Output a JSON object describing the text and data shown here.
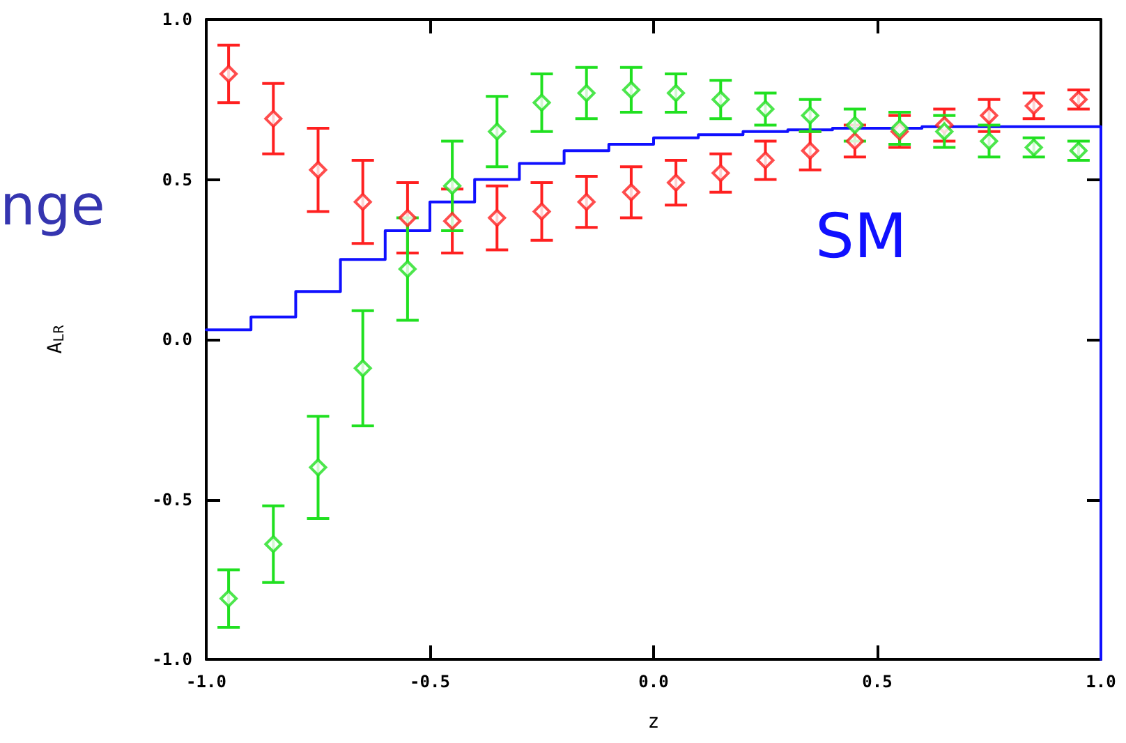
{
  "chart_data": {
    "type": "scatter",
    "xlabel": "z",
    "ylabel": "A$_{LR}$",
    "xlim": [
      -1.0,
      1.0
    ],
    "ylim": [
      -1.0,
      1.0
    ],
    "xticks": [
      {
        "value": -1.0,
        "label": "-1.0"
      },
      {
        "value": -0.5,
        "label": "-0.5"
      },
      {
        "value": 0.0,
        "label": "0.0"
      },
      {
        "value": 0.5,
        "label": "0.5"
      },
      {
        "value": 1.0,
        "label": "1.0"
      }
    ],
    "yticks": [
      {
        "value": -1.0,
        "label": "-1.0"
      },
      {
        "value": -0.5,
        "label": "-0.5"
      },
      {
        "value": 0.0,
        "label": "0.0"
      },
      {
        "value": 0.5,
        "label": "0.5"
      },
      {
        "value": 1.0,
        "label": "1.0"
      }
    ],
    "grid": false,
    "marker": "diamond",
    "series": [
      {
        "color": "#ff2020",
        "x": [
          -0.95,
          -0.85,
          -0.75,
          -0.65,
          -0.55,
          -0.45,
          -0.35,
          -0.25,
          -0.15,
          -0.05,
          0.05,
          0.15,
          0.25,
          0.35,
          0.45,
          0.55,
          0.65,
          0.75,
          0.85,
          0.95
        ],
        "values": [
          0.83,
          0.69,
          0.53,
          0.43,
          0.38,
          0.37,
          0.38,
          0.4,
          0.43,
          0.46,
          0.49,
          0.52,
          0.56,
          0.59,
          0.62,
          0.65,
          0.67,
          0.7,
          0.73,
          0.75
        ],
        "errors": [
          0.09,
          0.11,
          0.13,
          0.13,
          0.11,
          0.1,
          0.1,
          0.09,
          0.08,
          0.08,
          0.07,
          0.06,
          0.06,
          0.06,
          0.05,
          0.05,
          0.05,
          0.05,
          0.04,
          0.03
        ]
      },
      {
        "color": "#20e020",
        "x": [
          -0.95,
          -0.85,
          -0.75,
          -0.65,
          -0.55,
          -0.45,
          -0.35,
          -0.25,
          -0.15,
          -0.05,
          0.05,
          0.15,
          0.25,
          0.35,
          0.45,
          0.55,
          0.65,
          0.75,
          0.85,
          0.95
        ],
        "values": [
          -0.81,
          -0.64,
          -0.4,
          -0.09,
          0.22,
          0.48,
          0.65,
          0.74,
          0.77,
          0.78,
          0.77,
          0.75,
          0.72,
          0.7,
          0.67,
          0.66,
          0.65,
          0.62,
          0.6,
          0.59
        ],
        "errors": [
          0.09,
          0.12,
          0.16,
          0.18,
          0.16,
          0.14,
          0.11,
          0.09,
          0.08,
          0.07,
          0.06,
          0.06,
          0.05,
          0.05,
          0.05,
          0.05,
          0.05,
          0.05,
          0.03,
          0.03
        ]
      },
      {
        "type": "step",
        "color": "#1010ff",
        "line_style": "solid",
        "marker": "none",
        "x": [
          -1.0,
          -0.9,
          -0.8,
          -0.7,
          -0.6,
          -0.5,
          -0.4,
          -0.3,
          -0.2,
          -0.1,
          0.0,
          0.1,
          0.2,
          0.3,
          0.4,
          0.5,
          0.6,
          0.7,
          0.8,
          0.9,
          1.0,
          1.0
        ],
        "values": [
          0.03,
          0.07,
          0.15,
          0.25,
          0.34,
          0.43,
          0.5,
          0.55,
          0.59,
          0.61,
          0.63,
          0.64,
          0.65,
          0.655,
          0.66,
          0.66,
          0.665,
          0.665,
          0.665,
          0.665,
          0.665,
          -1.0
        ]
      }
    ],
    "annotations": [
      "SM",
      "nge"
    ]
  }
}
